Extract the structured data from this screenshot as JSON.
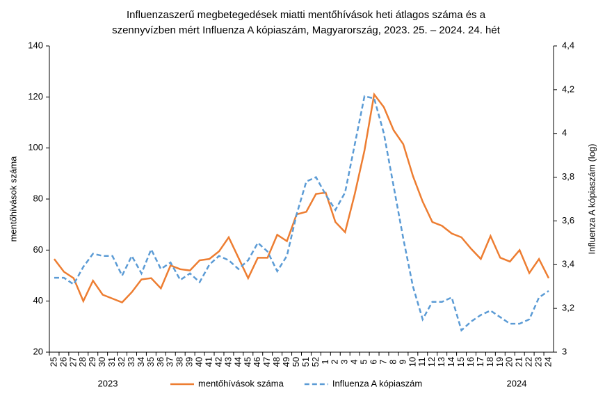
{
  "chart_data": {
    "type": "line",
    "title": "Influenzaszerű megbetegedések miatti mentőhívások heti átlagos száma és a szennyvízben mért Influenza A kópiaszám, Magyarország, 2023. 25. – 2024. 24. hét",
    "ylabel": "mentőhívások száma",
    "y2label": "Influenza A kópiaszám (log)",
    "annotations": [
      "2023",
      "2024"
    ],
    "categories": [
      "25",
      "26",
      "27",
      "28",
      "29",
      "30",
      "31",
      "32",
      "33",
      "34",
      "35",
      "36",
      "37",
      "38",
      "39",
      "40",
      "41",
      "42",
      "43",
      "44",
      "45",
      "46",
      "47",
      "48",
      "49",
      "50",
      "51",
      "52",
      "1",
      "2",
      "3",
      "4",
      "5",
      "6",
      "7",
      "8",
      "9",
      "10",
      "11",
      "12",
      "13",
      "14",
      "15",
      "16",
      "17",
      "18",
      "19",
      "20",
      "21",
      "22",
      "23",
      "24"
    ],
    "series": [
      {
        "name": "mentőhívások száma",
        "color": "#ed7d31",
        "dash": false,
        "values": [
          56.5,
          51.5,
          49,
          40,
          48,
          42.5,
          41,
          39.5,
          43.5,
          48.5,
          49,
          45,
          54,
          52.5,
          52,
          56,
          56.5,
          59.5,
          65,
          57,
          49,
          57,
          57,
          66,
          63.5,
          74,
          75,
          82,
          82.5,
          71,
          67,
          82,
          99,
          121,
          116,
          107,
          101.5,
          89,
          79,
          71,
          69.5,
          66.5,
          65,
          60.5,
          56.5,
          65.5,
          57,
          55.5,
          60,
          51,
          56.5,
          49
        ]
      },
      {
        "name": "Influenza A kópiaszám",
        "color": "#5b9bd5",
        "dash": true,
        "axis": "y2",
        "values": [
          3.34,
          3.34,
          3.31,
          3.39,
          3.45,
          3.44,
          3.44,
          3.35,
          3.44,
          3.36,
          3.47,
          3.38,
          3.41,
          3.33,
          3.36,
          3.32,
          3.4,
          3.44,
          3.42,
          3.38,
          3.42,
          3.5,
          3.46,
          3.37,
          3.44,
          3.63,
          3.78,
          3.8,
          3.72,
          3.65,
          3.73,
          3.95,
          4.17,
          4.16,
          4.0,
          3.76,
          3.52,
          3.3,
          3.15,
          3.23,
          3.23,
          3.25,
          3.1,
          3.14,
          3.17,
          3.19,
          3.16,
          3.13,
          3.13,
          3.15,
          3.25,
          3.28
        ]
      }
    ],
    "ylim": [
      20,
      140
    ],
    "yticks": [
      20,
      40,
      60,
      80,
      100,
      120,
      140
    ],
    "y2lim": [
      3,
      4.4
    ],
    "y2ticks": [
      3,
      {
        "value": 3.2,
        "label": "3,2"
      },
      {
        "value": 3.4,
        "label": "3,4"
      },
      {
        "value": 3.6,
        "label": "3,6"
      },
      {
        "value": 3.8,
        "label": "3,8"
      },
      4,
      {
        "value": 4.2,
        "label": "4,2"
      },
      {
        "value": 4.4,
        "label": "4,4"
      }
    ],
    "legend": "bottom"
  }
}
